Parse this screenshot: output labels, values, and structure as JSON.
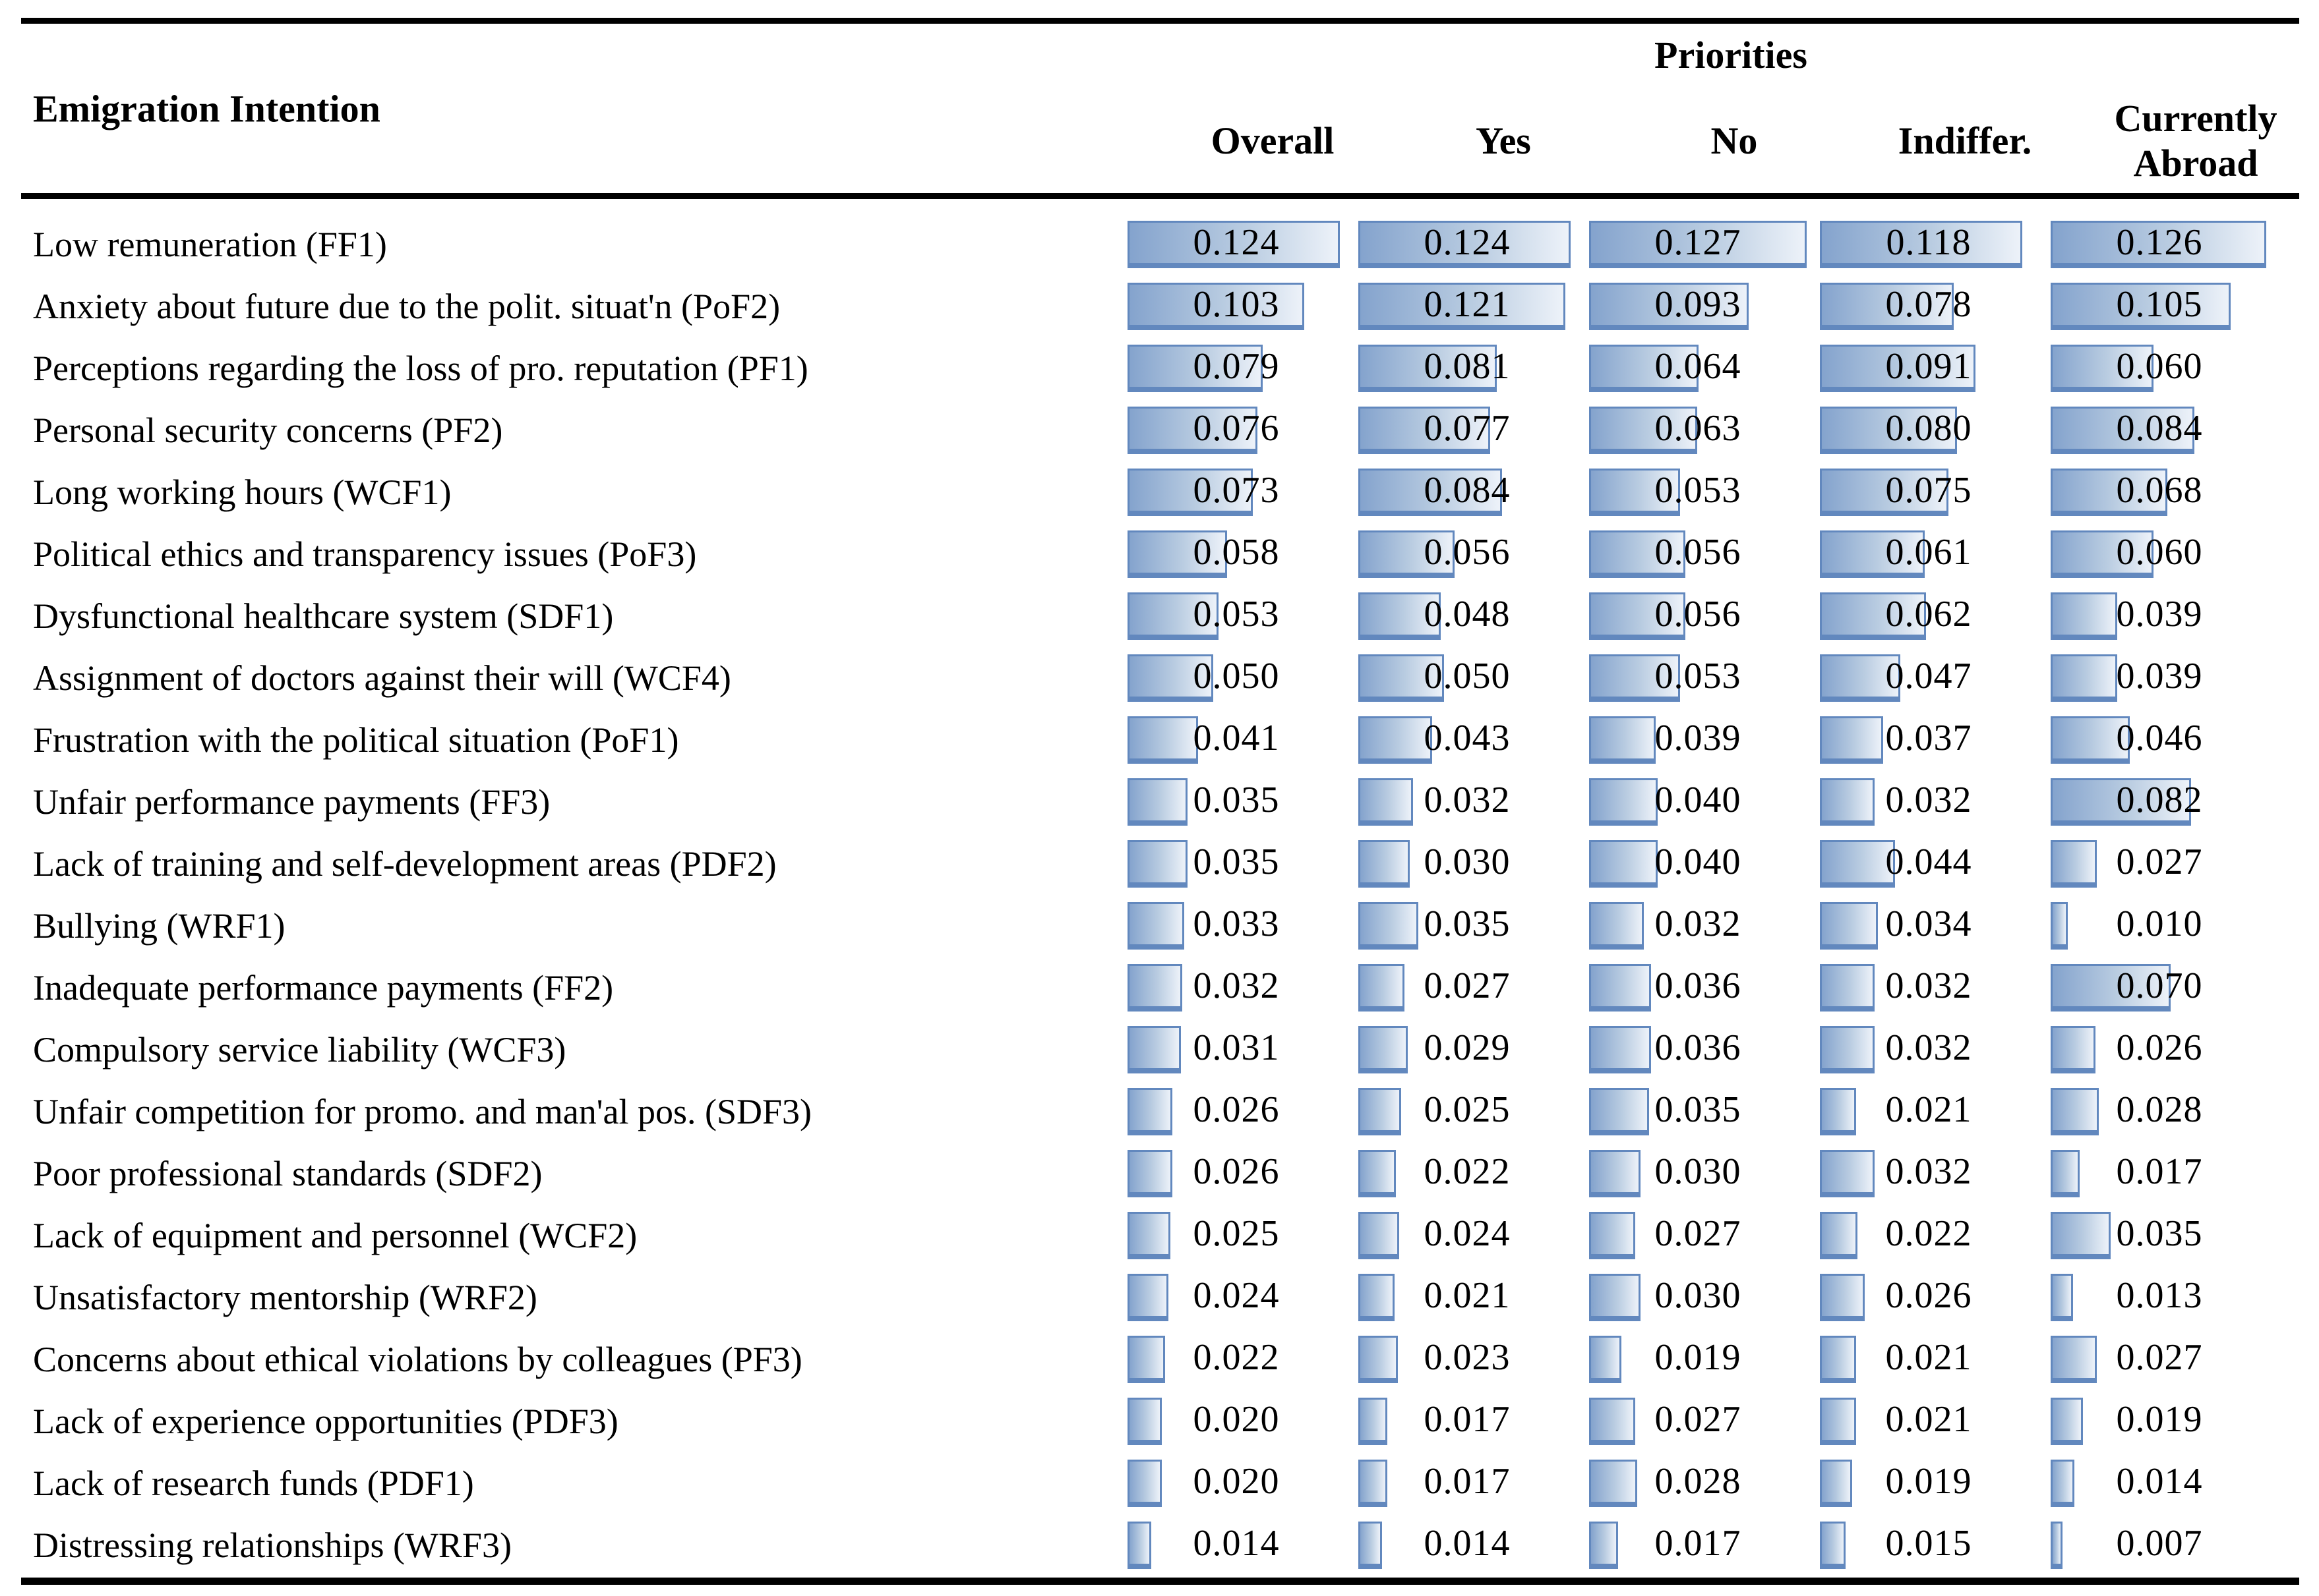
{
  "header": {
    "row_label_title": "Emigration Intention",
    "group_title": "Priorities"
  },
  "chart_data": {
    "type": "bar",
    "orientation": "horizontal",
    "title": "Priorities",
    "row_header": "Emigration Intention",
    "categories": [
      "Low remuneration (FF1)",
      "Anxiety about future due to the polit. situat'n (PoF2)",
      "Perceptions regarding the loss of pro. reputation (PF1)",
      "Personal security concerns (PF2)",
      "Long working hours (WCF1)",
      "Political ethics and transparency issues (PoF3)",
      "Dysfunctional healthcare system (SDF1)",
      "Assignment of doctors against their will (WCF4)",
      "Frustration with the political situation (PoF1)",
      "Unfair performance payments (FF3)",
      "Lack of training and self-development areas (PDF2)",
      "Bullying (WRF1)",
      "Inadequate performance payments (FF2)",
      "Compulsory service liability (WCF3)",
      "Unfair competition for promo. and man'al pos. (SDF3)",
      "Poor professional standards (SDF2)",
      "Lack of equipment and personnel (WCF2)",
      "Unsatisfactory mentorship (WRF2)",
      "Concerns about ethical violations by colleagues (PF3)",
      "Lack of experience opportunities (PDF3)",
      "Lack of research funds (PDF1)",
      "Distressing relationships (WRF3)"
    ],
    "series": [
      {
        "name": "Overall",
        "values": [
          "0.124",
          "0.103",
          "0.079",
          "0.076",
          "0.073",
          "0.058",
          "0.053",
          "0.050",
          "0.041",
          "0.035",
          "0.035",
          "0.033",
          "0.032",
          "0.031",
          "0.026",
          "0.026",
          "0.025",
          "0.024",
          "0.022",
          "0.020",
          "0.020",
          "0.014"
        ]
      },
      {
        "name": "Yes",
        "values": [
          "0.124",
          "0.121",
          "0.081",
          "0.077",
          "0.084",
          "0.056",
          "0.048",
          "0.050",
          "0.043",
          "0.032",
          "0.030",
          "0.035",
          "0.027",
          "0.029",
          "0.025",
          "0.022",
          "0.024",
          "0.021",
          "0.023",
          "0.017",
          "0.017",
          "0.014"
        ]
      },
      {
        "name": "No",
        "values": [
          "0.127",
          "0.093",
          "0.064",
          "0.063",
          "0.053",
          "0.056",
          "0.056",
          "0.053",
          "0.039",
          "0.040",
          "0.040",
          "0.032",
          "0.036",
          "0.036",
          "0.035",
          "0.030",
          "0.027",
          "0.030",
          "0.019",
          "0.027",
          "0.028",
          "0.017"
        ]
      },
      {
        "name": "Indiffer.",
        "values": [
          "0.118",
          "0.078",
          "0.091",
          "0.080",
          "0.075",
          "0.061",
          "0.062",
          "0.047",
          "0.037",
          "0.032",
          "0.044",
          "0.034",
          "0.032",
          "0.032",
          "0.021",
          "0.032",
          "0.022",
          "0.026",
          "0.021",
          "0.021",
          "0.019",
          "0.015"
        ]
      },
      {
        "name": "Currently Abroad",
        "values": [
          "0.126",
          "0.105",
          "0.060",
          "0.084",
          "0.068",
          "0.060",
          "0.039",
          "0.039",
          "0.046",
          "0.082",
          "0.027",
          "0.010",
          "0.070",
          "0.026",
          "0.028",
          "0.017",
          "0.035",
          "0.013",
          "0.027",
          "0.019",
          "0.014",
          "0.007"
        ]
      }
    ],
    "value_range": [
      0,
      0.127
    ],
    "bar_scale_max": 0.127,
    "grid": false,
    "legend_position": "column headers"
  },
  "colors": {
    "bar_border": "#6288BE",
    "bar_fill_left": "#84A3CD",
    "bar_fill_right": "#EDF2F9",
    "rule": "#000000",
    "text": "#000000"
  }
}
